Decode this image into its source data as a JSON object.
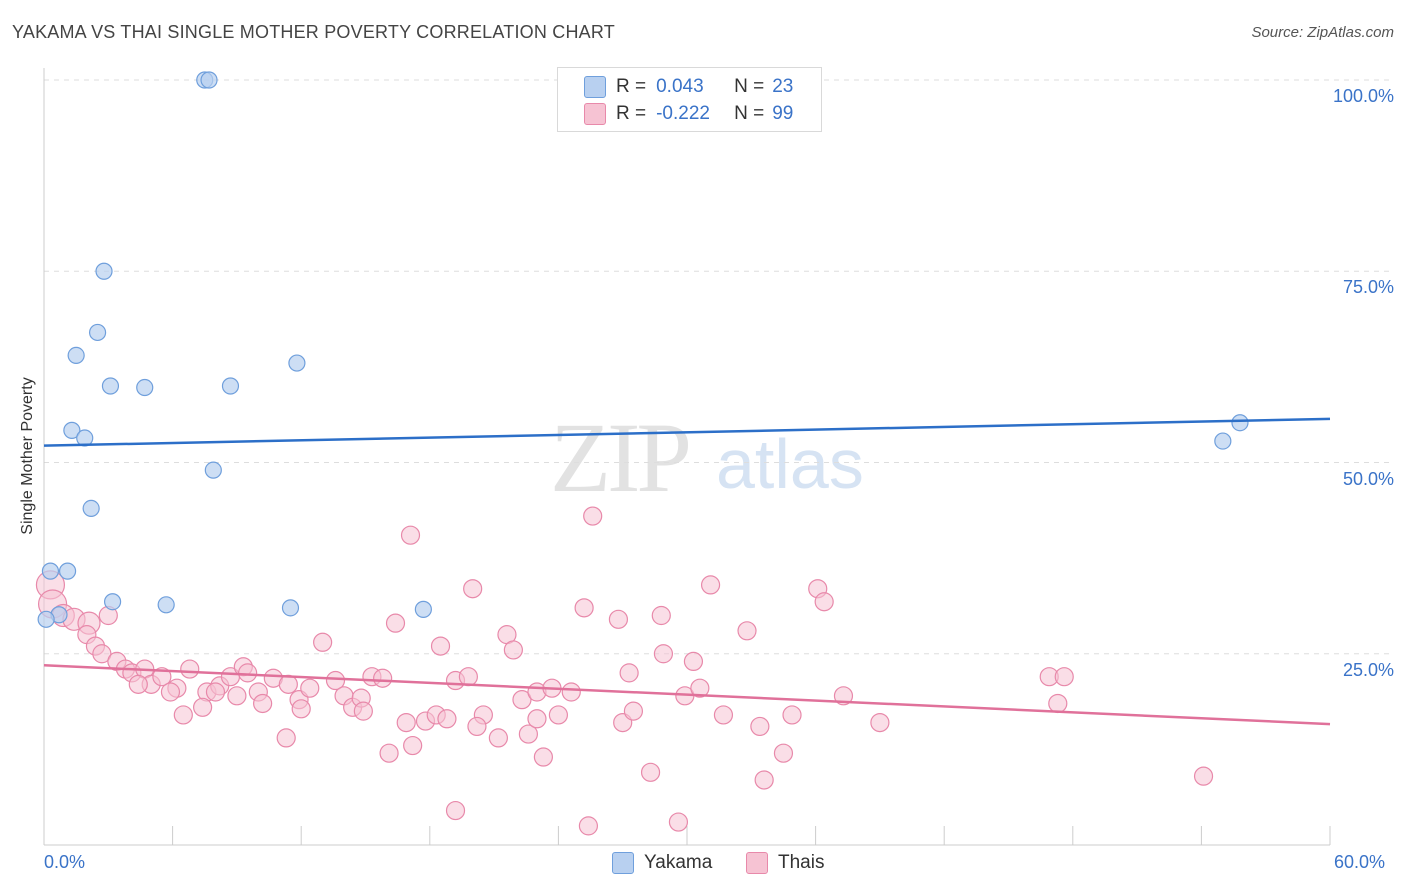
{
  "header": {
    "title": "YAKAMA VS THAI SINGLE MOTHER POVERTY CORRELATION CHART",
    "source": "Source: ZipAtlas.com"
  },
  "watermark": {
    "zip": "ZIP",
    "atlas": "atlas"
  },
  "legend_top": {
    "rows": [
      {
        "r_label": "R =",
        "r_value": "0.043",
        "n_label": "N =",
        "n_value": "23"
      },
      {
        "r_label": "R =",
        "r_value": "-0.222",
        "n_label": "N =",
        "n_value": "99"
      }
    ]
  },
  "legend_bottom": {
    "yakama": "Yakama",
    "thais": "Thais"
  },
  "colors": {
    "yakama_fill": "#b8d0f0",
    "yakama_stroke": "#6f9fdc",
    "yakama_line": "#2c6fc8",
    "thai_fill": "#f6c3d3",
    "thai_stroke": "#e889aa",
    "thai_line": "#e0719a",
    "tick_text": "#3a73c8",
    "grid": "#dddddd"
  },
  "chart_data": {
    "type": "scatter",
    "title": "YAKAMA VS THAI SINGLE MOTHER POVERTY CORRELATION CHART",
    "xlabel": "",
    "ylabel": "Single Mother Poverty",
    "xlim": [
      0,
      60
    ],
    "ylim": [
      0,
      100
    ],
    "x_tick_labels": [
      "0.0%",
      "60.0%"
    ],
    "y_ticks": [
      25,
      50,
      75,
      100
    ],
    "y_tick_labels": [
      "25.0%",
      "50.0%",
      "75.0%",
      "100.0%"
    ],
    "grid": true,
    "series": [
      {
        "name": "Yakama",
        "r": 0.043,
        "n": 23,
        "trend": {
          "x": [
            0,
            60
          ],
          "y": [
            52.2,
            55.7
          ]
        },
        "points": [
          {
            "x": 7.5,
            "y": 100
          },
          {
            "x": 7.7,
            "y": 100
          },
          {
            "x": 2.8,
            "y": 75.0
          },
          {
            "x": 2.5,
            "y": 67.0
          },
          {
            "x": 1.5,
            "y": 64.0
          },
          {
            "x": 3.1,
            "y": 60.0
          },
          {
            "x": 4.7,
            "y": 59.8
          },
          {
            "x": 8.7,
            "y": 60.0
          },
          {
            "x": 11.8,
            "y": 63.0
          },
          {
            "x": 1.3,
            "y": 54.2
          },
          {
            "x": 1.9,
            "y": 53.2
          },
          {
            "x": 7.9,
            "y": 49.0
          },
          {
            "x": 2.2,
            "y": 44.0
          },
          {
            "x": 0.3,
            "y": 35.8
          },
          {
            "x": 1.1,
            "y": 35.8
          },
          {
            "x": 3.2,
            "y": 31.8
          },
          {
            "x": 5.7,
            "y": 31.4
          },
          {
            "x": 0.7,
            "y": 30.1
          },
          {
            "x": 0.1,
            "y": 29.5
          },
          {
            "x": 11.5,
            "y": 31.0
          },
          {
            "x": 17.7,
            "y": 30.8
          },
          {
            "x": 55.8,
            "y": 55.2
          },
          {
            "x": 55.0,
            "y": 52.8
          }
        ]
      },
      {
        "name": "Thais",
        "r": -0.222,
        "n": 99,
        "trend": {
          "x": [
            0,
            60
          ],
          "y": [
            23.5,
            15.8
          ]
        },
        "points": [
          {
            "x": 0.3,
            "y": 34.0
          },
          {
            "x": 0.4,
            "y": 31.5
          },
          {
            "x": 0.9,
            "y": 30.0
          },
          {
            "x": 1.4,
            "y": 29.5
          },
          {
            "x": 2.1,
            "y": 29.0
          },
          {
            "x": 3.0,
            "y": 30.0
          },
          {
            "x": 2.0,
            "y": 27.5
          },
          {
            "x": 2.4,
            "y": 26.0
          },
          {
            "x": 2.7,
            "y": 25.0
          },
          {
            "x": 3.4,
            "y": 24.0
          },
          {
            "x": 3.8,
            "y": 23.0
          },
          {
            "x": 4.1,
            "y": 22.5
          },
          {
            "x": 4.7,
            "y": 23.0
          },
          {
            "x": 5.0,
            "y": 21.0
          },
          {
            "x": 5.5,
            "y": 22.0
          },
          {
            "x": 6.2,
            "y": 20.5
          },
          {
            "x": 4.4,
            "y": 21.0
          },
          {
            "x": 5.9,
            "y": 20.0
          },
          {
            "x": 6.8,
            "y": 23.0
          },
          {
            "x": 7.6,
            "y": 20.0
          },
          {
            "x": 8.2,
            "y": 20.8
          },
          {
            "x": 8.7,
            "y": 22.0
          },
          {
            "x": 9.3,
            "y": 23.3
          },
          {
            "x": 9.5,
            "y": 22.5
          },
          {
            "x": 10.0,
            "y": 20.0
          },
          {
            "x": 10.7,
            "y": 21.8
          },
          {
            "x": 11.4,
            "y": 21.0
          },
          {
            "x": 11.9,
            "y": 19.0
          },
          {
            "x": 12.4,
            "y": 20.5
          },
          {
            "x": 13.0,
            "y": 26.5
          },
          {
            "x": 13.6,
            "y": 21.5
          },
          {
            "x": 14.0,
            "y": 19.5
          },
          {
            "x": 14.4,
            "y": 18.0
          },
          {
            "x": 14.8,
            "y": 19.2
          },
          {
            "x": 15.3,
            "y": 22.0
          },
          {
            "x": 15.8,
            "y": 21.8
          },
          {
            "x": 16.4,
            "y": 29.0
          },
          {
            "x": 16.9,
            "y": 16.0
          },
          {
            "x": 17.8,
            "y": 16.2
          },
          {
            "x": 18.3,
            "y": 17.0
          },
          {
            "x": 18.8,
            "y": 16.5
          },
          {
            "x": 16.1,
            "y": 12.0
          },
          {
            "x": 17.2,
            "y": 13.0
          },
          {
            "x": 11.3,
            "y": 14.0
          },
          {
            "x": 10.2,
            "y": 18.5
          },
          {
            "x": 9.0,
            "y": 19.5
          },
          {
            "x": 7.4,
            "y": 18.0
          },
          {
            "x": 6.5,
            "y": 17.0
          },
          {
            "x": 8.0,
            "y": 20.0
          },
          {
            "x": 12.0,
            "y": 17.8
          },
          {
            "x": 14.9,
            "y": 17.5
          },
          {
            "x": 17.1,
            "y": 40.5
          },
          {
            "x": 18.5,
            "y": 26.0
          },
          {
            "x": 19.2,
            "y": 21.5
          },
          {
            "x": 19.8,
            "y": 22.0
          },
          {
            "x": 20.0,
            "y": 33.5
          },
          {
            "x": 20.5,
            "y": 17.0
          },
          {
            "x": 20.2,
            "y": 15.5
          },
          {
            "x": 21.2,
            "y": 14.0
          },
          {
            "x": 21.6,
            "y": 27.5
          },
          {
            "x": 21.9,
            "y": 25.5
          },
          {
            "x": 22.3,
            "y": 19.0
          },
          {
            "x": 22.6,
            "y": 14.5
          },
          {
            "x": 23.0,
            "y": 16.5
          },
          {
            "x": 23.0,
            "y": 20.0
          },
          {
            "x": 23.3,
            "y": 11.5
          },
          {
            "x": 23.7,
            "y": 20.5
          },
          {
            "x": 24.0,
            "y": 17.0
          },
          {
            "x": 24.6,
            "y": 20.0
          },
          {
            "x": 25.2,
            "y": 31.0
          },
          {
            "x": 25.4,
            "y": 2.5
          },
          {
            "x": 25.6,
            "y": 43.0
          },
          {
            "x": 26.8,
            "y": 29.5
          },
          {
            "x": 27.0,
            "y": 16.0
          },
          {
            "x": 27.3,
            "y": 22.5
          },
          {
            "x": 27.5,
            "y": 17.5
          },
          {
            "x": 28.3,
            "y": 9.5
          },
          {
            "x": 28.8,
            "y": 30.0
          },
          {
            "x": 28.9,
            "y": 25.0
          },
          {
            "x": 29.6,
            "y": 3.0
          },
          {
            "x": 29.9,
            "y": 19.5
          },
          {
            "x": 30.3,
            "y": 24.0
          },
          {
            "x": 30.6,
            "y": 20.5
          },
          {
            "x": 31.1,
            "y": 34.0
          },
          {
            "x": 31.7,
            "y": 17.0
          },
          {
            "x": 32.8,
            "y": 28.0
          },
          {
            "x": 33.4,
            "y": 15.5
          },
          {
            "x": 33.6,
            "y": 8.5
          },
          {
            "x": 34.5,
            "y": 12.0
          },
          {
            "x": 34.9,
            "y": 17.0
          },
          {
            "x": 36.1,
            "y": 33.5
          },
          {
            "x": 36.4,
            "y": 31.8
          },
          {
            "x": 37.3,
            "y": 19.5
          },
          {
            "x": 39.0,
            "y": 16.0
          },
          {
            "x": 19.2,
            "y": 4.5
          },
          {
            "x": 46.9,
            "y": 22.0
          },
          {
            "x": 47.3,
            "y": 18.5
          },
          {
            "x": 47.6,
            "y": 22.0
          },
          {
            "x": 54.1,
            "y": 9.0
          }
        ]
      }
    ]
  }
}
